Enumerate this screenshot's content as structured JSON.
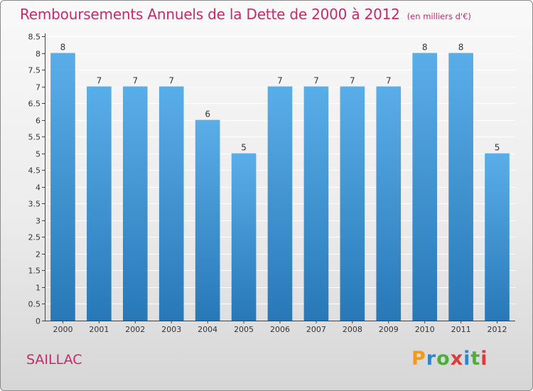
{
  "title": "Remboursements Annuels de la Dette de 2000 à 2012",
  "subtitle": "(en milliers d'€)",
  "commune": "SAILLAC",
  "logo": {
    "letters": [
      "P",
      "r",
      "o",
      "x",
      "i",
      "t",
      "i"
    ]
  },
  "colors": {
    "accent": "#c8296a",
    "bar_light": "#5aaee8",
    "bar_dark": "#2878b8",
    "axis": "#444444",
    "grid": "#ffffff"
  },
  "chart_data": {
    "type": "bar",
    "categories": [
      "2000",
      "2001",
      "2002",
      "2003",
      "2004",
      "2005",
      "2006",
      "2007",
      "2008",
      "2009",
      "2010",
      "2011",
      "2012"
    ],
    "values": [
      8,
      7,
      7,
      7,
      6,
      5,
      7,
      7,
      7,
      7,
      8,
      8,
      5
    ],
    "data_labels": [
      "8",
      "7",
      "7",
      "7",
      "6",
      "5",
      "7",
      "7",
      "7",
      "7",
      "8",
      "8",
      "5"
    ],
    "y_ticks": [
      0,
      0.5,
      1,
      1.5,
      2,
      2.5,
      3,
      3.5,
      4,
      4.5,
      5,
      5.5,
      6,
      6.5,
      7,
      7.5,
      8,
      8.5
    ],
    "y_tick_labels": [
      "0",
      "0.5",
      "1",
      "1.5",
      "2",
      "2.5",
      "3",
      "3.5",
      "4",
      "4.5",
      "5",
      "5.5",
      "6",
      "6.5",
      "7",
      "7.5",
      "8",
      "8.5"
    ],
    "ylim": [
      0,
      8.5
    ],
    "grid": true,
    "legend": "none",
    "xlabel": "",
    "ylabel": ""
  }
}
